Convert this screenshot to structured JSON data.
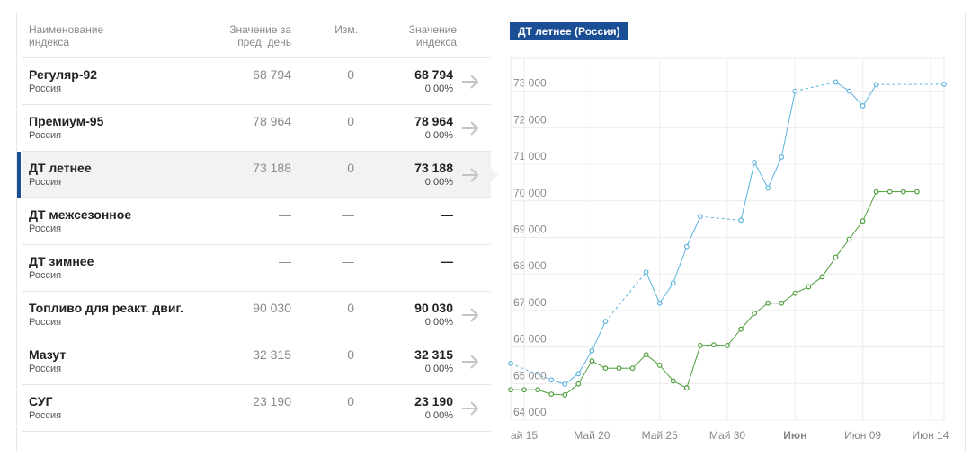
{
  "table": {
    "headers": {
      "name": "Наименование\nиндекса",
      "prev": "Значение за\nпред. день",
      "change": "Изм.",
      "value": "Значение\nиндекса"
    },
    "rows": [
      {
        "name": "Регуляр-92",
        "region": "Россия",
        "prev": "68 794",
        "change": "0",
        "value": "68 794",
        "pct": "0.00%",
        "arrow": true,
        "active": false
      },
      {
        "name": "Премиум-95",
        "region": "Россия",
        "prev": "78 964",
        "change": "0",
        "value": "78 964",
        "pct": "0.00%",
        "arrow": true,
        "active": false
      },
      {
        "name": "ДТ летнее",
        "region": "Россия",
        "prev": "73 188",
        "change": "0",
        "value": "73 188",
        "pct": "0.00%",
        "arrow": true,
        "active": true
      },
      {
        "name": "ДТ межсезонное",
        "region": "Россия",
        "prev": "—",
        "change": "—",
        "value": "—",
        "pct": "",
        "arrow": false,
        "active": false
      },
      {
        "name": "ДТ зимнее",
        "region": "Россия",
        "prev": "—",
        "change": "—",
        "value": "—",
        "pct": "",
        "arrow": false,
        "active": false
      },
      {
        "name": "Топливо для реакт. двиг.",
        "region": "Россия",
        "prev": "90 030",
        "change": "0",
        "value": "90 030",
        "pct": "0.00%",
        "arrow": true,
        "active": false
      },
      {
        "name": "Мазут",
        "region": "Россия",
        "prev": "32 315",
        "change": "0",
        "value": "32 315",
        "pct": "0.00%",
        "arrow": true,
        "active": false
      },
      {
        "name": "СУГ",
        "region": "Россия",
        "prev": "23 190",
        "change": "0",
        "value": "23 190",
        "pct": "0.00%",
        "arrow": true,
        "active": false
      }
    ]
  },
  "chart_title": "ДТ летнее (Россия)",
  "colors": {
    "accent": "#1a4f96",
    "series_blue": "#5cb3de",
    "series_green": "#4e9e3c",
    "muted": "#8a8a8a"
  },
  "chart_data": {
    "type": "line",
    "title": "ДТ летнее (Россия)",
    "xlim": [
      "2019-05-14",
      "2019-06-15"
    ],
    "ylim": [
      64000,
      73900
    ],
    "y_ticks": [
      64000,
      65000,
      66000,
      67000,
      68000,
      69000,
      70000,
      71000,
      72000,
      73000
    ],
    "y_tick_labels": [
      "64 000",
      "65 000",
      "66 000",
      "67 000",
      "68 000",
      "69 000",
      "70 000",
      "71 000",
      "72 000",
      "73 000"
    ],
    "x_ticks": [
      {
        "date": "2019-05-15",
        "label": "ай 15",
        "bold": false
      },
      {
        "date": "2019-05-20",
        "label": "Май 20",
        "bold": false
      },
      {
        "date": "2019-05-25",
        "label": "Май 25",
        "bold": false
      },
      {
        "date": "2019-05-30",
        "label": "Май 30",
        "bold": false
      },
      {
        "date": "2019-06-04",
        "label": "Июн",
        "bold": true
      },
      {
        "date": "2019-06-09",
        "label": "Июн 09",
        "bold": false
      },
      {
        "date": "2019-06-14",
        "label": "Июн 14",
        "bold": false
      }
    ],
    "grid": true,
    "series": [
      {
        "color": "#5cb3de",
        "points": [
          [
            "2019-05-14",
            65550
          ],
          [
            "2019-05-17",
            65100
          ],
          [
            "2019-05-18",
            64980
          ],
          [
            "2019-05-19",
            65270
          ],
          [
            "2019-05-20",
            65900
          ],
          [
            "2019-05-21",
            66700
          ],
          [
            "2019-05-24",
            68050
          ],
          [
            "2019-05-25",
            67200
          ],
          [
            "2019-05-26",
            67750
          ],
          [
            "2019-05-27",
            68750
          ],
          [
            "2019-05-28",
            69570
          ],
          [
            "2019-05-31",
            69470
          ],
          [
            "2019-06-01",
            71050
          ],
          [
            "2019-06-02",
            70350
          ],
          [
            "2019-06-03",
            71200
          ],
          [
            "2019-06-04",
            73000
          ],
          [
            "2019-06-07",
            73250
          ],
          [
            "2019-06-08",
            73000
          ],
          [
            "2019-06-09",
            72600
          ],
          [
            "2019-06-10",
            73180
          ],
          [
            "2019-06-15",
            73190
          ]
        ]
      },
      {
        "color": "#4e9e3c",
        "points": [
          [
            "2019-05-14",
            64830
          ],
          [
            "2019-05-15",
            64830
          ],
          [
            "2019-05-16",
            64830
          ],
          [
            "2019-05-17",
            64710
          ],
          [
            "2019-05-18",
            64690
          ],
          [
            "2019-05-19",
            64990
          ],
          [
            "2019-05-20",
            65620
          ],
          [
            "2019-05-21",
            65420
          ],
          [
            "2019-05-22",
            65420
          ],
          [
            "2019-05-23",
            65420
          ],
          [
            "2019-05-24",
            65790
          ],
          [
            "2019-05-25",
            65500
          ],
          [
            "2019-05-26",
            65070
          ],
          [
            "2019-05-27",
            64880
          ],
          [
            "2019-05-28",
            66040
          ],
          [
            "2019-05-29",
            66060
          ],
          [
            "2019-05-30",
            66040
          ],
          [
            "2019-05-31",
            66490
          ],
          [
            "2019-06-01",
            66920
          ],
          [
            "2019-06-02",
            67200
          ],
          [
            "2019-06-03",
            67200
          ],
          [
            "2019-06-04",
            67470
          ],
          [
            "2019-06-05",
            67650
          ],
          [
            "2019-06-06",
            67920
          ],
          [
            "2019-06-07",
            68460
          ],
          [
            "2019-06-08",
            68950
          ],
          [
            "2019-06-09",
            69450
          ],
          [
            "2019-06-10",
            70250
          ],
          [
            "2019-06-11",
            70250
          ],
          [
            "2019-06-12",
            70250
          ],
          [
            "2019-06-13",
            70250
          ]
        ]
      }
    ]
  }
}
